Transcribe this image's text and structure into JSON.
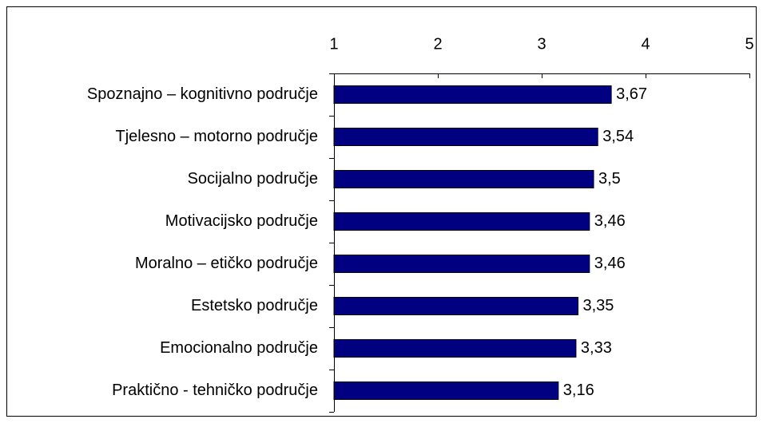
{
  "chart_data": {
    "type": "barh",
    "categories": [
      "Spoznajno – kognitivno područje",
      "Tjelesno – motorno područje",
      "Socijalno područje",
      "Motivacijsko područje",
      "Moralno – etičko područje",
      "Estetsko područje",
      "Emocionalno područje",
      "Praktično - tehničko područje"
    ],
    "values": [
      3.67,
      3.54,
      3.5,
      3.46,
      3.46,
      3.35,
      3.33,
      3.16
    ],
    "value_labels": [
      "3,67",
      "3,54",
      "3,5",
      "3,46",
      "3,46",
      "3,35",
      "3,33",
      "3,16"
    ],
    "color": "#000080",
    "xlim": [
      1,
      5
    ],
    "xticks": [
      1,
      2,
      3,
      4,
      5
    ]
  }
}
